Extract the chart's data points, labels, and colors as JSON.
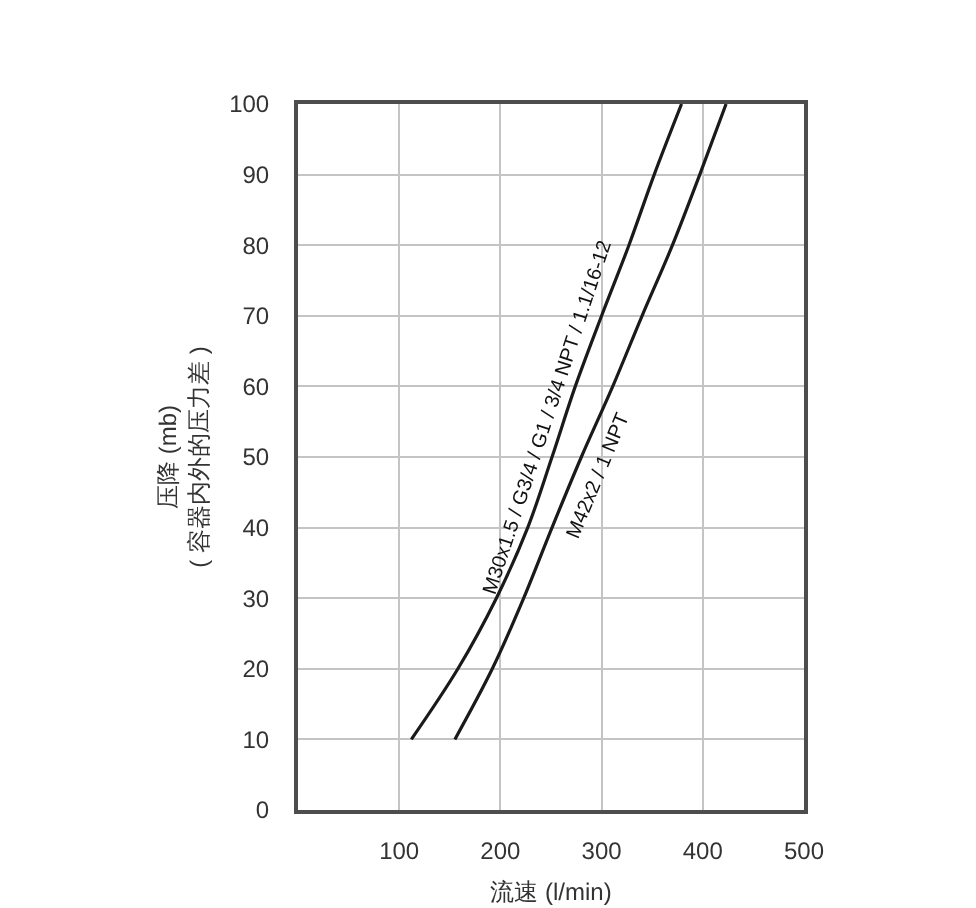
{
  "chart_data": {
    "type": "line",
    "xlabel": "流速 (l/min)",
    "ylabel": "压降 (mb)\n( 容器内外的压力差 )",
    "xlim": [
      0,
      500
    ],
    "ylim": [
      0,
      100
    ],
    "xticks": [
      100,
      200,
      300,
      400,
      500
    ],
    "yticks": [
      0,
      10,
      20,
      30,
      40,
      50,
      60,
      70,
      80,
      90,
      100
    ],
    "grid": true,
    "legend": false,
    "marker": "none",
    "line_style": "solid",
    "series": [
      {
        "name": "M30x1.5 / G3/4 / G1 / 3/4 NPT / 1.1/16-12",
        "color": "#1a1a1a",
        "x": [
          112,
          158,
          196,
          227,
          251,
          274,
          300,
          327,
          352,
          379
        ],
        "values": [
          10,
          20,
          30,
          40,
          50,
          60,
          70,
          80,
          90,
          100
        ]
      },
      {
        "name": "M42x2 / 1 NPT",
        "color": "#1a1a1a",
        "x": [
          155,
          192,
          223,
          251,
          280,
          311,
          340,
          370,
          397,
          423
        ],
        "values": [
          10,
          20,
          30,
          40,
          50,
          60,
          70,
          80,
          90,
          100
        ]
      }
    ]
  }
}
